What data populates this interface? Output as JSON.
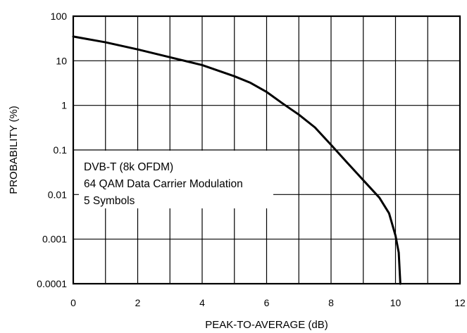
{
  "chart_data": {
    "type": "line",
    "xlabel": "PEAK-TO-AVERAGE (dB)",
    "ylabel": "PROBABILITY (%)",
    "xlim": [
      0,
      12
    ],
    "ylim": [
      0.0001,
      100
    ],
    "yscale": "log",
    "grid": true,
    "x_ticks": [
      "0",
      "2",
      "4",
      "6",
      "8",
      "10",
      "12"
    ],
    "y_ticks": [
      "100",
      "10",
      "1",
      "0.1",
      "0.01",
      "0.001",
      "0.0001"
    ],
    "annotations": [
      "DVB-T (8k OFDM)",
      "64 QAM Data Carrier Modulation",
      "5 Symbols"
    ],
    "series": [
      {
        "x": [
          0,
          1,
          2,
          3,
          3.5,
          4,
          5,
          5.5,
          6,
          6.5,
          7,
          7.5,
          8,
          8.5,
          9,
          9.5,
          9.8,
          10.0,
          10.1,
          10.15
        ],
        "y": [
          35,
          26,
          18,
          12,
          9.8,
          8.0,
          4.5,
          3.2,
          2.0,
          1.1,
          0.62,
          0.32,
          0.13,
          0.052,
          0.021,
          0.0085,
          0.0038,
          0.0012,
          0.0005,
          0.0001
        ]
      }
    ]
  }
}
